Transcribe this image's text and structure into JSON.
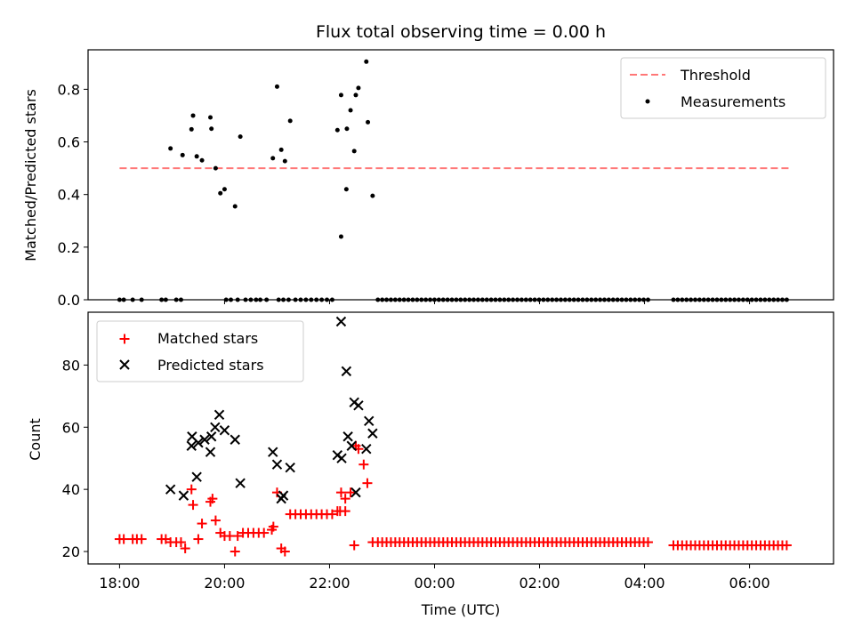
{
  "chart_data": [
    {
      "type": "scatter",
      "title": "Flux total observing time = 0.00 h",
      "xlabel": "",
      "ylabel": "Matched/Predicted stars",
      "xlim": [
        -0.6,
        13.6
      ],
      "ylim": [
        0,
        0.95
      ],
      "x_tick_values": [
        2,
        4,
        6,
        8,
        10,
        12
      ],
      "y_ticks": [
        0.0,
        0.2,
        0.4,
        0.6,
        0.8
      ],
      "y_tick_labels": [
        "0.0",
        "0.2",
        "0.4",
        "0.6",
        "0.8"
      ],
      "legend_position": "top-right",
      "series": [
        {
          "name": "Threshold",
          "style": "dashed-line",
          "color": "#ff7777",
          "x": [
            0.0,
            12.75
          ],
          "y": [
            0.5,
            0.5
          ]
        },
        {
          "name": "Measurements",
          "style": "dot",
          "color": "#000000",
          "points": [
            [
              0.0,
              0
            ],
            [
              0.08,
              0
            ],
            [
              0.25,
              0
            ],
            [
              0.42,
              0
            ],
            [
              0.8,
              0
            ],
            [
              0.88,
              0
            ],
            [
              1.08,
              0
            ],
            [
              1.17,
              0
            ],
            [
              0.97,
              0.575
            ],
            [
              1.2,
              0.55
            ],
            [
              1.37,
              0.648
            ],
            [
              1.4,
              0.7
            ],
            [
              1.47,
              0.545
            ],
            [
              1.57,
              0.53
            ],
            [
              1.73,
              0.693
            ],
            [
              1.75,
              0.65
            ],
            [
              1.83,
              0.5
            ],
            [
              1.92,
              0.405
            ],
            [
              2.0,
              0.42
            ],
            [
              2.2,
              0.355
            ],
            [
              2.3,
              0.62
            ],
            [
              2.92,
              0.538
            ],
            [
              3.0,
              0.81
            ],
            [
              3.08,
              0.57
            ],
            [
              3.15,
              0.527
            ],
            [
              3.25,
              0.68
            ],
            [
              4.15,
              0.645
            ],
            [
              4.22,
              0.778
            ],
            [
              4.33,
              0.65
            ],
            [
              4.4,
              0.72
            ],
            [
              4.5,
              0.778
            ],
            [
              4.55,
              0.805
            ],
            [
              4.7,
              0.905
            ],
            [
              4.73,
              0.675
            ],
            [
              4.82,
              0.395
            ],
            [
              4.22,
              0.24
            ],
            [
              4.32,
              0.42
            ],
            [
              4.47,
              0.565
            ],
            [
              2.03,
              0
            ],
            [
              2.12,
              0
            ],
            [
              2.25,
              0
            ],
            [
              2.4,
              0
            ],
            [
              2.5,
              0
            ],
            [
              2.6,
              0
            ],
            [
              2.68,
              0
            ],
            [
              2.8,
              0
            ],
            [
              3.03,
              0
            ],
            [
              3.12,
              0
            ],
            [
              3.22,
              0
            ],
            [
              3.35,
              0
            ],
            [
              3.45,
              0
            ],
            [
              3.55,
              0
            ],
            [
              3.65,
              0
            ],
            [
              3.75,
              0
            ],
            [
              3.85,
              0
            ],
            [
              3.95,
              0
            ],
            [
              4.05,
              0
            ]
          ]
        }
      ]
    },
    {
      "type": "scatter",
      "title": "",
      "xlabel": "Time (UTC)",
      "ylabel": "Count",
      "xlim": [
        -0.6,
        13.6
      ],
      "ylim": [
        16,
        97
      ],
      "x_ticks": [
        0,
        2,
        4,
        6,
        8,
        10,
        12
      ],
      "x_tick_labels": [
        "18:00",
        "20:00",
        "22:00",
        "00:00",
        "02:00",
        "04:00",
        "06:00"
      ],
      "y_ticks": [
        20,
        40,
        60,
        80
      ],
      "y_tick_labels": [
        "20",
        "40",
        "60",
        "80"
      ],
      "legend_position": "top-left",
      "series": [
        {
          "name": "Matched stars",
          "marker": "plus",
          "color": "#ff0000",
          "points": [
            [
              0.0,
              24
            ],
            [
              0.08,
              24
            ],
            [
              0.25,
              24
            ],
            [
              0.33,
              24
            ],
            [
              0.42,
              24
            ],
            [
              0.8,
              24
            ],
            [
              0.88,
              24
            ],
            [
              0.97,
              23
            ],
            [
              1.08,
              23
            ],
            [
              1.17,
              23
            ],
            [
              1.25,
              21
            ],
            [
              1.37,
              40
            ],
            [
              1.4,
              35
            ],
            [
              1.5,
              24
            ],
            [
              1.57,
              29
            ],
            [
              1.73,
              36
            ],
            [
              1.77,
              37
            ],
            [
              1.83,
              30
            ],
            [
              1.92,
              26
            ],
            [
              2.0,
              25
            ],
            [
              2.1,
              25
            ],
            [
              2.2,
              20
            ],
            [
              2.25,
              25
            ],
            [
              2.35,
              26
            ],
            [
              2.45,
              26
            ],
            [
              2.55,
              26
            ],
            [
              2.65,
              26
            ],
            [
              2.75,
              26
            ],
            [
              2.9,
              27
            ],
            [
              2.93,
              28
            ],
            [
              3.0,
              39
            ],
            [
              3.08,
              21
            ],
            [
              3.15,
              20
            ],
            [
              3.25,
              32
            ],
            [
              3.35,
              32
            ],
            [
              3.45,
              32
            ],
            [
              3.55,
              32
            ],
            [
              3.65,
              32
            ],
            [
              3.75,
              32
            ],
            [
              3.85,
              32
            ],
            [
              3.95,
              32
            ],
            [
              4.05,
              32
            ],
            [
              4.15,
              33
            ],
            [
              4.22,
              39
            ],
            [
              4.3,
              37
            ],
            [
              4.4,
              39
            ],
            [
              4.5,
              54
            ],
            [
              4.55,
              53
            ],
            [
              4.65,
              48
            ],
            [
              4.72,
              42
            ],
            [
              4.82,
              23
            ],
            [
              4.2,
              33
            ],
            [
              4.3,
              33
            ],
            [
              4.47,
              22
            ]
          ],
          "flat_ranges": [
            {
              "from": 4.92,
              "to": 10.1,
              "step": 0.083,
              "y": 23
            },
            {
              "from": 10.55,
              "to": 12.75,
              "step": 0.083,
              "y": 22
            }
          ]
        },
        {
          "name": "Predicted stars",
          "marker": "x",
          "color": "#000000",
          "points": [
            [
              0.97,
              40
            ],
            [
              1.22,
              38
            ],
            [
              1.37,
              54
            ],
            [
              1.38,
              57
            ],
            [
              1.47,
              44
            ],
            [
              1.5,
              55
            ],
            [
              1.62,
              56
            ],
            [
              1.73,
              52
            ],
            [
              1.75,
              57
            ],
            [
              1.82,
              60
            ],
            [
              1.9,
              64
            ],
            [
              2.0,
              59
            ],
            [
              2.2,
              56
            ],
            [
              2.3,
              42
            ],
            [
              2.92,
              52
            ],
            [
              3.0,
              48
            ],
            [
              3.08,
              37
            ],
            [
              3.12,
              38
            ],
            [
              3.25,
              47
            ],
            [
              4.15,
              51
            ],
            [
              4.23,
              50
            ],
            [
              4.35,
              57
            ],
            [
              4.42,
              54
            ],
            [
              4.47,
              68
            ],
            [
              4.55,
              67
            ],
            [
              4.7,
              53
            ],
            [
              4.75,
              62
            ],
            [
              4.82,
              58
            ],
            [
              4.22,
              94
            ],
            [
              4.32,
              78
            ],
            [
              4.5,
              39
            ]
          ]
        }
      ]
    }
  ]
}
